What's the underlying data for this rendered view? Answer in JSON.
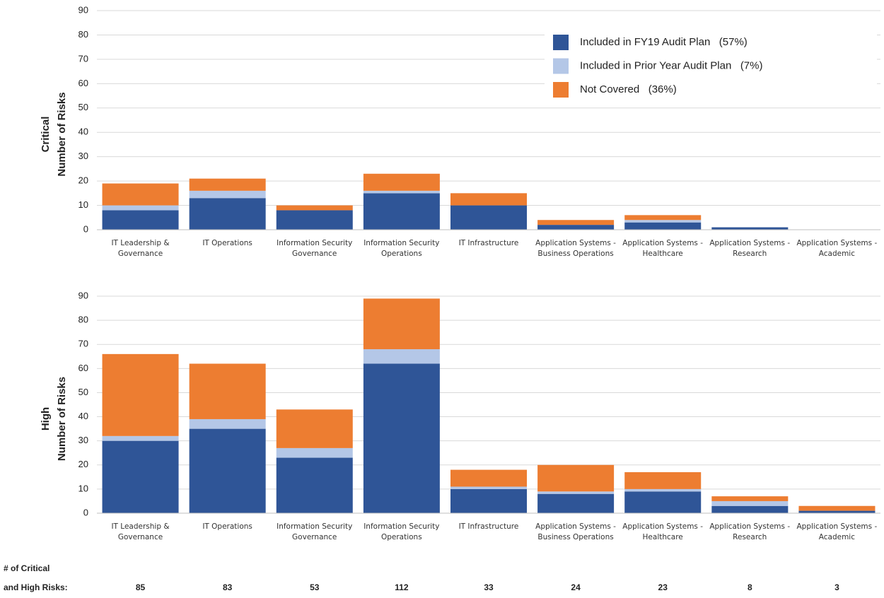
{
  "chart_data": [
    {
      "type": "bar",
      "stacked": true,
      "ylabel": [
        "Critical",
        "Number of Risks"
      ],
      "categories": [
        "IT Leadership & Governance",
        "IT Operations",
        "Information Security Governance",
        "Information Security Operations",
        "IT Infrastructure",
        "Application Systems - Business Operations",
        "Application Systems - Healthcare",
        "Application Systems - Research",
        "Application Systems - Academic"
      ],
      "series": [
        {
          "name": "Included in FY19 Audit Plan   (57%)",
          "color": "#2f5597",
          "values": [
            8,
            13,
            8,
            15,
            10,
            2,
            3,
            1,
            0
          ]
        },
        {
          "name": "Included in Prior Year Audit Plan   (7%)",
          "color": "#b4c7e7",
          "values": [
            2,
            3,
            0,
            1,
            0,
            0,
            1,
            0,
            0
          ]
        },
        {
          "name": "Not Covered   (36%)",
          "color": "#ed7d31",
          "values": [
            9,
            5,
            2,
            7,
            5,
            2,
            2,
            0,
            0
          ]
        }
      ],
      "ylim": [
        0,
        90
      ],
      "yticks": [
        0,
        10,
        20,
        30,
        40,
        50,
        60,
        70,
        80,
        90
      ],
      "grid": true,
      "legend": "upper right"
    },
    {
      "type": "bar",
      "stacked": true,
      "ylabel": [
        "High",
        "Number of Risks"
      ],
      "categories": [
        "IT Leadership & Governance",
        "IT Operations",
        "Information Security Governance",
        "Information Security Operations",
        "IT Infrastructure",
        "Application Systems - Business Operations",
        "Application Systems - Healthcare",
        "Application Systems - Research",
        "Application Systems - Academic"
      ],
      "series": [
        {
          "color": "#2f5597",
          "values": [
            30,
            35,
            23,
            62,
            10,
            8,
            9,
            3,
            1
          ]
        },
        {
          "color": "#b4c7e7",
          "values": [
            2,
            4,
            4,
            6,
            1,
            1,
            1,
            2,
            0
          ]
        },
        {
          "color": "#ed7d31",
          "values": [
            34,
            23,
            16,
            21,
            7,
            11,
            7,
            2,
            2
          ]
        }
      ],
      "ylim": [
        0,
        90
      ],
      "yticks": [
        0,
        10,
        20,
        30,
        40,
        50,
        60,
        70,
        80,
        90
      ],
      "grid": true
    }
  ],
  "totals": {
    "label": [
      "# of Critical",
      "and High Risks:"
    ],
    "values": [
      85,
      83,
      53,
      112,
      33,
      24,
      23,
      8,
      3
    ]
  }
}
